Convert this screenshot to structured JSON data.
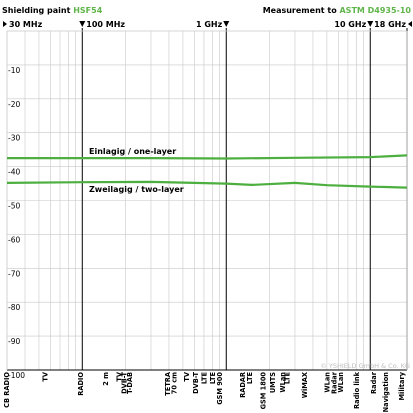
{
  "header": {
    "left_prefix": "Shielding paint ",
    "left_accent": "HSF54",
    "right_prefix": "Measurement to ",
    "right_accent": "ASTM D4935-10"
  },
  "freq_labels": [
    {
      "text": "30 MHz",
      "freq_mhz": 30,
      "marker": "right"
    },
    {
      "text": "100 MHz",
      "freq_mhz": 100,
      "marker": "down"
    },
    {
      "text": "1 GHz",
      "freq_mhz": 1000,
      "marker": "down"
    },
    {
      "text": "10 GHz",
      "freq_mhz": 10000,
      "marker": "down"
    },
    {
      "text": "18 GHz",
      "freq_mhz": 18000,
      "marker": "left"
    }
  ],
  "copyright": "© YSHIELD GmbH & Co. KG",
  "band_labels": [
    {
      "text": "CB RADIO",
      "freq_mhz": 27.5
    },
    {
      "text": "TV",
      "freq_mhz": 55
    },
    {
      "text": "RADIO",
      "freq_mhz": 97
    },
    {
      "text": "2 m",
      "freq_mhz": 145
    },
    {
      "text": "TV",
      "freq_mhz": 180
    },
    {
      "text": "DVB-T",
      "freq_mhz": 195
    },
    {
      "text": "T-DAB",
      "freq_mhz": 212
    },
    {
      "text": "TETRA",
      "freq_mhz": 390
    },
    {
      "text": "70 cm",
      "freq_mhz": 435
    },
    {
      "text": "TV",
      "freq_mhz": 530
    },
    {
      "text": "DVB-T",
      "freq_mhz": 610
    },
    {
      "text": "LTE",
      "freq_mhz": 700
    },
    {
      "text": "LTE",
      "freq_mhz": 800
    },
    {
      "text": "GSM 900",
      "freq_mhz": 900
    },
    {
      "text": "RADAR",
      "freq_mhz": 1300
    },
    {
      "text": "LTE",
      "freq_mhz": 1450
    },
    {
      "text": "GSM 1800",
      "freq_mhz": 1800
    },
    {
      "text": "UMTS",
      "freq_mhz": 2100
    },
    {
      "text": "WLan",
      "freq_mhz": 2450
    },
    {
      "text": "LTE",
      "freq_mhz": 2650
    },
    {
      "text": "WiMAX",
      "freq_mhz": 3500
    },
    {
      "text": "WLan",
      "freq_mhz": 5000
    },
    {
      "text": "Radar",
      "freq_mhz": 5600
    },
    {
      "text": "WLan",
      "freq_mhz": 6200
    },
    {
      "text": "Radio link",
      "freq_mhz": 8000
    },
    {
      "text": "Radar",
      "freq_mhz": 10500
    },
    {
      "text": "Navigation",
      "freq_mhz": 12800
    },
    {
      "text": "Military",
      "freq_mhz": 16500
    }
  ],
  "colors": {
    "accent": "#5fb54a",
    "series": "#4caf3f",
    "grid": "#c8c8c8",
    "major_grid": "#000000"
  },
  "chart_data": {
    "type": "line",
    "title": "",
    "xlabel": "",
    "ylabel": "",
    "x_scale": "log",
    "xlim": [
      30,
      18000
    ],
    "ylim": [
      -100,
      0
    ],
    "y_ticks": [
      -10,
      -20,
      -30,
      -40,
      -50,
      -60,
      -70,
      -80,
      -90,
      -100
    ],
    "x_major_lines_mhz": [
      100,
      1000,
      10000,
      18000
    ],
    "grid": true,
    "series": [
      {
        "name": "Einlagig / one-layer",
        "x": [
          30,
          100,
          300,
          1000,
          3000,
          10000,
          18000
        ],
        "values": [
          -37.5,
          -37.5,
          -37.5,
          -37.6,
          -37.4,
          -37.2,
          -36.7
        ]
      },
      {
        "name": "Zweilagig / two-layer",
        "x": [
          30,
          100,
          300,
          1000,
          1500,
          3000,
          5000,
          10000,
          18000
        ],
        "values": [
          -44.8,
          -44.6,
          -44.5,
          -45.0,
          -45.4,
          -44.8,
          -45.5,
          -45.9,
          -46.2
        ]
      }
    ]
  }
}
